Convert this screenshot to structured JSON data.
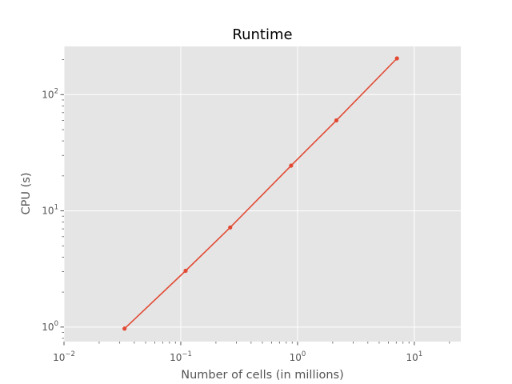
{
  "chart_data": {
    "type": "line",
    "title": "Runtime",
    "xlabel": "Number of cells (in millions)",
    "ylabel": "CPU (s)",
    "xscale": "log",
    "yscale": "log",
    "xlim": [
      0.01,
      25
    ],
    "ylim": [
      0.75,
      260
    ],
    "grid": true,
    "x": [
      0.033,
      0.11,
      0.265,
      0.88,
      2.15,
      7.1
    ],
    "series": [
      {
        "values": [
          0.97,
          3.05,
          7.2,
          24.5,
          60,
          205
        ]
      }
    ],
    "colors": {
      "series": "#E24A33",
      "plot_background": "#E5E5E5",
      "grid": "#FFFFFF"
    },
    "x_ticks": [
      {
        "base": "10",
        "exp": "−2"
      },
      {
        "base": "10",
        "exp": "−1"
      },
      {
        "base": "10",
        "exp": "0"
      },
      {
        "base": "10",
        "exp": "1"
      }
    ],
    "y_ticks": [
      {
        "base": "10",
        "exp": "0"
      },
      {
        "base": "10",
        "exp": "1"
      },
      {
        "base": "10",
        "exp": "2"
      }
    ]
  }
}
